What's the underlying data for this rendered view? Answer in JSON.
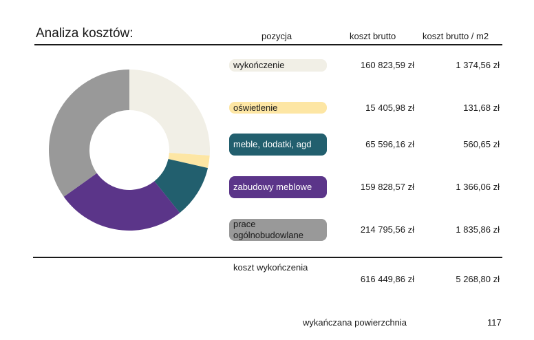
{
  "title": "Analiza kosztów:",
  "headers": {
    "pozycja": "pozycja",
    "brutto": "koszt brutto",
    "per_m2": "koszt brutto / m2"
  },
  "rows": [
    {
      "label": "wykończenie",
      "brutto": "160 823,59 zł",
      "per_m2": "1 374,56 zł",
      "color": "#f1efe6",
      "text_color": "#1a1a1a"
    },
    {
      "label": "oświetlenie",
      "brutto": "15 405,98 zł",
      "per_m2": "131,68 zł",
      "color": "#fde6a4",
      "text_color": "#1a1a1a"
    },
    {
      "label": "meble, dodatki, agd",
      "brutto": "65 596,16 zł",
      "per_m2": "560,65 zł",
      "color": "#225f6e",
      "text_color": "#ffffff"
    },
    {
      "label": "zabudowy meblowe",
      "brutto": "159 828,57 zł",
      "per_m2": "1 366,06 zł",
      "color": "#5b3589",
      "text_color": "#ffffff"
    },
    {
      "label": "prace ogólnobudowlane",
      "brutto": "214 795,56 zł",
      "per_m2": "1 835,86 zł",
      "color": "#999999",
      "text_color": "#1a1a1a"
    }
  ],
  "total": {
    "label": "koszt wykończenia",
    "brutto": "616 449,86 zł",
    "per_m2": "5 268,80 zł"
  },
  "area": {
    "label": "wykańczana powierzchnia",
    "value": "117"
  },
  "chart_data": {
    "type": "pie",
    "donut": true,
    "categories": [
      "wykończenie",
      "oświetlenie",
      "meble, dodatki, agd",
      "zabudowy meblowe",
      "prace ogólnobudowlane"
    ],
    "values": [
      160823.59,
      15405.98,
      65596.16,
      159828.57,
      214795.56
    ],
    "colors": [
      "#f1efe6",
      "#fde6a4",
      "#225f6e",
      "#5b3589",
      "#999999"
    ]
  }
}
